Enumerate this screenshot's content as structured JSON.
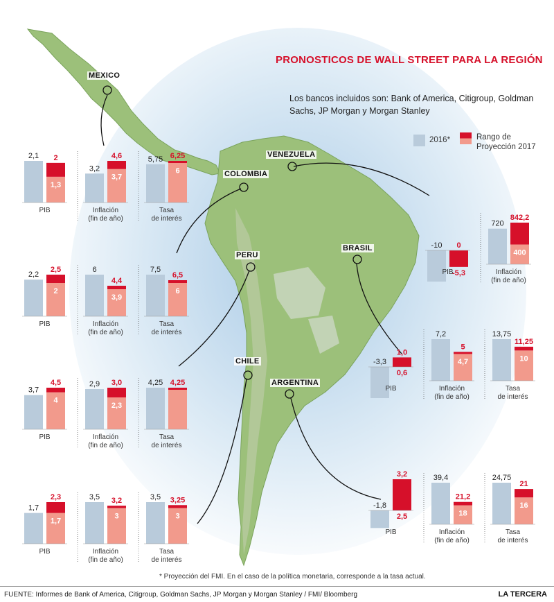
{
  "title": "PRONOSTICOS DE WALL STREET PARA LA REGIÓN",
  "subtitle": "Los bancos incluidos son: Bank of America, Citigroup, Goldman Sachs, JP Morgan y Morgan Stanley",
  "legend": {
    "s2016": "2016*",
    "range": "Rango de Proyección 2017"
  },
  "colors": {
    "s2016": "#b9cbdb",
    "range_low": "#f29a8c",
    "range_high": "#d6102a"
  },
  "footnote": "* Proyección del FMI. En el caso de la política monetaria, corresponde a la tasa actual.",
  "source": "FUENTE: Informes de Bank of America, Citigroup, Goldman Sachs, JP Morgan y Morgan Stanley / FMI/ Bloomberg",
  "brand": "LA TERCERA",
  "chart_data": [
    {
      "type": "bar",
      "country": "MEXICO",
      "categories": [
        "PIB",
        "Inflación (fin de año)",
        "Tasa de interés"
      ],
      "values_2016": [
        2.1,
        3.2,
        5.75
      ],
      "labels_2016": [
        "2,1",
        "3,2",
        "5,75"
      ],
      "range_2017": [
        [
          1.3,
          2
        ],
        [
          3.7,
          4.6
        ],
        [
          6,
          6.25
        ]
      ],
      "labels_2017": [
        [
          "1,3",
          "2"
        ],
        [
          "3,7",
          "4,6"
        ],
        [
          "6",
          "6,25"
        ]
      ]
    },
    {
      "type": "bar",
      "country": "COLOMBIA",
      "categories": [
        "PIB",
        "Inflación (fin de año)",
        "Tasa de interés"
      ],
      "values_2016": [
        2.2,
        6,
        7.5
      ],
      "labels_2016": [
        "2,2",
        "6",
        "7,5"
      ],
      "range_2017": [
        [
          2,
          2.5
        ],
        [
          3.9,
          4.4
        ],
        [
          6,
          6.5
        ]
      ],
      "labels_2017": [
        [
          "2",
          "2,5"
        ],
        [
          "3,9",
          "4,4"
        ],
        [
          "6",
          "6,5"
        ]
      ]
    },
    {
      "type": "bar",
      "country": "PERU",
      "categories": [
        "PIB",
        "Inflación (fin de año)",
        "Tasa de interés"
      ],
      "values_2016": [
        3.7,
        2.9,
        4.25
      ],
      "labels_2016": [
        "3,7",
        "2,9",
        "4,25"
      ],
      "range_2017": [
        [
          4,
          4.5
        ],
        [
          2.3,
          3.0
        ],
        [
          4.25,
          4.25
        ]
      ],
      "labels_2017": [
        [
          "4",
          "4,5"
        ],
        [
          "2,3",
          "3,0"
        ],
        [
          "",
          "4,25"
        ]
      ]
    },
    {
      "type": "bar",
      "country": "CHILE",
      "categories": [
        "PIB",
        "Inflación (fin de año)",
        "Tasa de interés"
      ],
      "values_2016": [
        1.7,
        3.5,
        3.5
      ],
      "labels_2016": [
        "1,7",
        "3,5",
        "3,5"
      ],
      "range_2017": [
        [
          1.7,
          2.3
        ],
        [
          3,
          3.2
        ],
        [
          3,
          3.25
        ]
      ],
      "labels_2017": [
        [
          "1,7",
          "2,3"
        ],
        [
          "3",
          "3,2"
        ],
        [
          "3",
          "3,25"
        ]
      ]
    },
    {
      "type": "bar",
      "country": "VENEZUELA",
      "categories": [
        "PIB",
        "Inflación (fin de año)"
      ],
      "values_2016": [
        -10,
        720
      ],
      "labels_2016": [
        "-10",
        "720"
      ],
      "range_2017": [
        [
          -5.3,
          0
        ],
        [
          400,
          842.2
        ]
      ],
      "labels_2017": [
        [
          "-5,3",
          "0"
        ],
        [
          "400",
          "842,2"
        ]
      ]
    },
    {
      "type": "bar",
      "country": "BRASIL",
      "categories": [
        "PIB",
        "Inflación (fin de año)",
        "Tasa de interés"
      ],
      "values_2016": [
        -3.3,
        7.2,
        13.75
      ],
      "labels_2016": [
        "-3,3",
        "7,2",
        "13,75"
      ],
      "range_2017": [
        [
          0.6,
          1.0
        ],
        [
          4.7,
          5
        ],
        [
          10,
          11.25
        ]
      ],
      "labels_2017": [
        [
          "0,6",
          "1,0"
        ],
        [
          "4,7",
          "5"
        ],
        [
          "10",
          "11,25"
        ]
      ]
    },
    {
      "type": "bar",
      "country": "ARGENTINA",
      "categories": [
        "PIB",
        "Inflación (fin de año)",
        "Tasa de interés"
      ],
      "values_2016": [
        -1.8,
        39.4,
        24.75
      ],
      "labels_2016": [
        "-1,8",
        "39,4",
        "24,75"
      ],
      "range_2017": [
        [
          2.5,
          3.2
        ],
        [
          18,
          21.2
        ],
        [
          16,
          21
        ]
      ],
      "labels_2017": [
        [
          "2,5",
          "3,2"
        ],
        [
          "18",
          "21,2"
        ],
        [
          "16",
          "21"
        ]
      ]
    }
  ]
}
